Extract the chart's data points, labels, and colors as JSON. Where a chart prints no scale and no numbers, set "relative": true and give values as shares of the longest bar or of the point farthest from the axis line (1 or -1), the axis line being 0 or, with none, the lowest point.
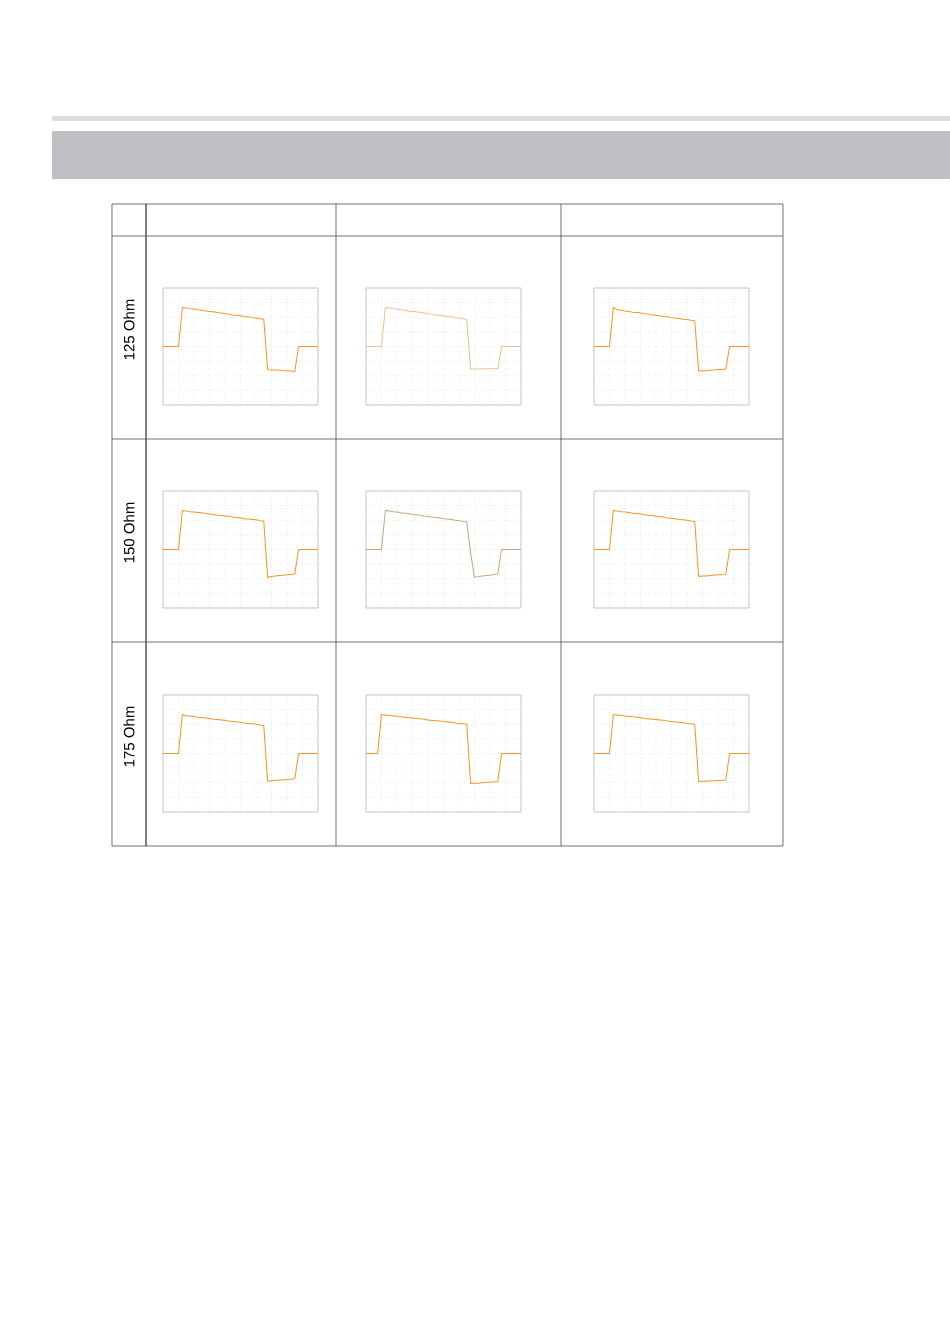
{
  "chart_data": [
    {
      "type": "line",
      "relative": true,
      "grid": true,
      "ylabel": "125 Ohm",
      "color": "#f7931e",
      "categories": [
        null,
        null,
        null,
        null,
        null,
        null,
        null,
        null,
        null,
        null,
        null,
        null,
        null,
        null,
        null,
        null,
        null,
        null,
        null,
        null,
        null,
        null,
        null,
        null,
        null,
        null,
        null,
        null,
        null,
        null,
        null,
        null,
        null,
        null,
        null,
        null,
        null,
        null,
        null,
        null,
        null
      ],
      "values": [
        0,
        0,
        0,
        0,
        0,
        1.0,
        0.99,
        0.97,
        0.96,
        0.94,
        0.93,
        0.91,
        0.9,
        0.89,
        0.87,
        0.86,
        0.84,
        0.83,
        0.81,
        0.8,
        0.79,
        0.77,
        0.76,
        0.74,
        0.73,
        0.71,
        0.7,
        -0.59,
        -0.6,
        -0.6,
        -0.61,
        -0.62,
        -0.62,
        -0.63,
        -0.64,
        0,
        0,
        0,
        0,
        0,
        0
      ]
    },
    {
      "type": "line",
      "relative": true,
      "grid": true,
      "color": "#e9bf8c",
      "categories": [
        null,
        null,
        null,
        null,
        null,
        null,
        null,
        null,
        null,
        null,
        null,
        null,
        null,
        null,
        null,
        null,
        null,
        null,
        null,
        null,
        null,
        null,
        null,
        null,
        null,
        null,
        null,
        null,
        null,
        null,
        null,
        null,
        null,
        null,
        null,
        null,
        null,
        null,
        null,
        null,
        null
      ],
      "values": [
        0,
        0,
        0,
        0,
        0,
        1.0,
        0.99,
        0.97,
        0.96,
        0.94,
        0.93,
        0.91,
        0.9,
        0.89,
        0.87,
        0.86,
        0.84,
        0.83,
        0.81,
        0.8,
        0.79,
        0.77,
        0.76,
        0.74,
        0.73,
        0.71,
        0.7,
        -0.58,
        -0.58,
        -0.58,
        -0.58,
        -0.57,
        -0.57,
        -0.57,
        -0.57,
        0,
        0,
        0,
        0,
        0,
        0
      ]
    },
    {
      "type": "line",
      "relative": true,
      "grid": true,
      "color": "#f7931e",
      "categories": [
        null,
        null,
        null,
        null,
        null,
        null,
        null,
        null,
        null,
        null,
        null,
        null,
        null,
        null,
        null,
        null,
        null,
        null,
        null,
        null,
        null,
        null,
        null,
        null,
        null,
        null,
        null,
        null,
        null,
        null,
        null,
        null,
        null,
        null,
        null,
        null,
        null,
        null,
        null,
        null,
        null
      ],
      "values": [
        0,
        0,
        0,
        0,
        0,
        1.0,
        0.94,
        0.93,
        0.91,
        0.9,
        0.88,
        0.87,
        0.86,
        0.84,
        0.83,
        0.81,
        0.8,
        0.79,
        0.77,
        0.76,
        0.74,
        0.73,
        0.72,
        0.7,
        0.69,
        0.67,
        0.66,
        -0.63,
        -0.62,
        -0.62,
        -0.61,
        -0.6,
        -0.59,
        -0.59,
        -0.58,
        0,
        0,
        0,
        0,
        0,
        0
      ]
    },
    {
      "type": "line",
      "relative": true,
      "grid": true,
      "ylabel": "150 Ohm",
      "color": "#f7931e",
      "categories": [
        null,
        null,
        null,
        null,
        null,
        null,
        null,
        null,
        null,
        null,
        null,
        null,
        null,
        null,
        null,
        null,
        null,
        null,
        null,
        null,
        null,
        null,
        null,
        null,
        null,
        null,
        null,
        null,
        null,
        null,
        null,
        null,
        null,
        null,
        null,
        null,
        null,
        null,
        null,
        null,
        null
      ],
      "values": [
        0,
        0,
        0,
        0,
        0,
        1.0,
        0.99,
        0.97,
        0.96,
        0.95,
        0.94,
        0.92,
        0.91,
        0.9,
        0.88,
        0.87,
        0.86,
        0.85,
        0.83,
        0.82,
        0.81,
        0.79,
        0.78,
        0.77,
        0.76,
        0.74,
        0.73,
        -0.72,
        -0.69,
        -0.68,
        -0.67,
        -0.66,
        -0.65,
        -0.64,
        -0.63,
        0,
        0,
        0,
        0,
        0,
        0
      ]
    },
    {
      "type": "line",
      "relative": true,
      "grid": true,
      "color": "#c9a47f",
      "categories": [
        null,
        null,
        null,
        null,
        null,
        null,
        null,
        null,
        null,
        null,
        null,
        null,
        null,
        null,
        null,
        null,
        null,
        null,
        null,
        null,
        null,
        null,
        null,
        null,
        null,
        null,
        null,
        null,
        null,
        null,
        null,
        null,
        null,
        null,
        null,
        null,
        null,
        null,
        null,
        null,
        null
      ],
      "values": [
        0,
        0,
        0,
        0,
        0,
        1.0,
        0.99,
        0.97,
        0.96,
        0.94,
        0.93,
        0.92,
        0.9,
        0.89,
        0.88,
        0.86,
        0.85,
        0.83,
        0.82,
        0.81,
        0.79,
        0.78,
        0.77,
        0.75,
        0.74,
        0.72,
        0.71,
        -0.1,
        -0.71,
        -0.7,
        -0.68,
        -0.67,
        -0.66,
        -0.64,
        -0.63,
        0,
        0,
        0,
        0,
        0,
        0
      ]
    },
    {
      "type": "line",
      "relative": true,
      "grid": true,
      "color": "#f7931e",
      "categories": [
        null,
        null,
        null,
        null,
        null,
        null,
        null,
        null,
        null,
        null,
        null,
        null,
        null,
        null,
        null,
        null,
        null,
        null,
        null,
        null,
        null,
        null,
        null,
        null,
        null,
        null,
        null,
        null,
        null,
        null,
        null,
        null,
        null,
        null,
        null,
        null,
        null,
        null,
        null,
        null,
        null
      ],
      "values": [
        0,
        0,
        0,
        0,
        0,
        1.0,
        0.99,
        0.97,
        0.96,
        0.95,
        0.93,
        0.92,
        0.91,
        0.89,
        0.88,
        0.87,
        0.85,
        0.84,
        0.83,
        0.81,
        0.8,
        0.79,
        0.77,
        0.76,
        0.75,
        0.73,
        0.72,
        -0.69,
        -0.68,
        -0.68,
        -0.67,
        -0.66,
        -0.65,
        -0.65,
        -0.64,
        0,
        0,
        0,
        0,
        0,
        0
      ]
    },
    {
      "type": "line",
      "relative": true,
      "grid": true,
      "ylabel": "175 Ohm",
      "color": "#f7931e",
      "categories": [
        null,
        null,
        null,
        null,
        null,
        null,
        null,
        null,
        null,
        null,
        null,
        null,
        null,
        null,
        null,
        null,
        null,
        null,
        null,
        null,
        null,
        null,
        null,
        null,
        null,
        null,
        null,
        null,
        null,
        null,
        null,
        null,
        null,
        null,
        null,
        null,
        null,
        null,
        null,
        null,
        null
      ],
      "values": [
        0,
        0,
        0,
        0,
        0,
        1.0,
        0.97,
        0.96,
        0.95,
        0.93,
        0.92,
        0.91,
        0.9,
        0.88,
        0.87,
        0.86,
        0.85,
        0.83,
        0.82,
        0.81,
        0.8,
        0.78,
        0.77,
        0.76,
        0.75,
        0.73,
        0.72,
        -0.71,
        -0.7,
        -0.69,
        -0.68,
        -0.68,
        -0.67,
        -0.66,
        -0.65,
        0,
        0,
        0,
        0,
        0,
        0
      ]
    },
    {
      "type": "line",
      "relative": true,
      "grid": true,
      "color": "#f7931e",
      "categories": [
        null,
        null,
        null,
        null,
        null,
        null,
        null,
        null,
        null,
        null,
        null,
        null,
        null,
        null,
        null,
        null,
        null,
        null,
        null,
        null,
        null,
        null,
        null,
        null,
        null,
        null,
        null,
        null,
        null,
        null,
        null,
        null,
        null,
        null,
        null,
        null,
        null,
        null,
        null,
        null,
        null
      ],
      "values": [
        0,
        0,
        0,
        0,
        1.0,
        0.99,
        0.98,
        0.97,
        0.95,
        0.94,
        0.93,
        0.92,
        0.91,
        0.9,
        0.89,
        0.88,
        0.86,
        0.85,
        0.84,
        0.83,
        0.82,
        0.81,
        0.8,
        0.78,
        0.77,
        0.76,
        0.75,
        -0.77,
        -0.76,
        -0.76,
        -0.75,
        -0.74,
        -0.74,
        -0.73,
        -0.72,
        0,
        0,
        0,
        0,
        0,
        0
      ]
    },
    {
      "type": "line",
      "relative": true,
      "grid": true,
      "color": "#f7931e",
      "categories": [
        null,
        null,
        null,
        null,
        null,
        null,
        null,
        null,
        null,
        null,
        null,
        null,
        null,
        null,
        null,
        null,
        null,
        null,
        null,
        null,
        null,
        null,
        null,
        null,
        null,
        null,
        null,
        null,
        null,
        null,
        null,
        null,
        null,
        null,
        null,
        null,
        null,
        null,
        null,
        null,
        null
      ],
      "values": [
        0,
        0,
        0,
        0,
        0,
        1.0,
        0.99,
        0.98,
        0.96,
        0.95,
        0.94,
        0.93,
        0.92,
        0.9,
        0.89,
        0.88,
        0.87,
        0.86,
        0.85,
        0.83,
        0.82,
        0.81,
        0.8,
        0.79,
        0.77,
        0.76,
        0.75,
        -0.72,
        -0.71,
        -0.71,
        -0.7,
        -0.7,
        -0.69,
        -0.69,
        -0.68,
        0,
        0,
        0,
        0,
        0,
        0
      ]
    }
  ]
}
